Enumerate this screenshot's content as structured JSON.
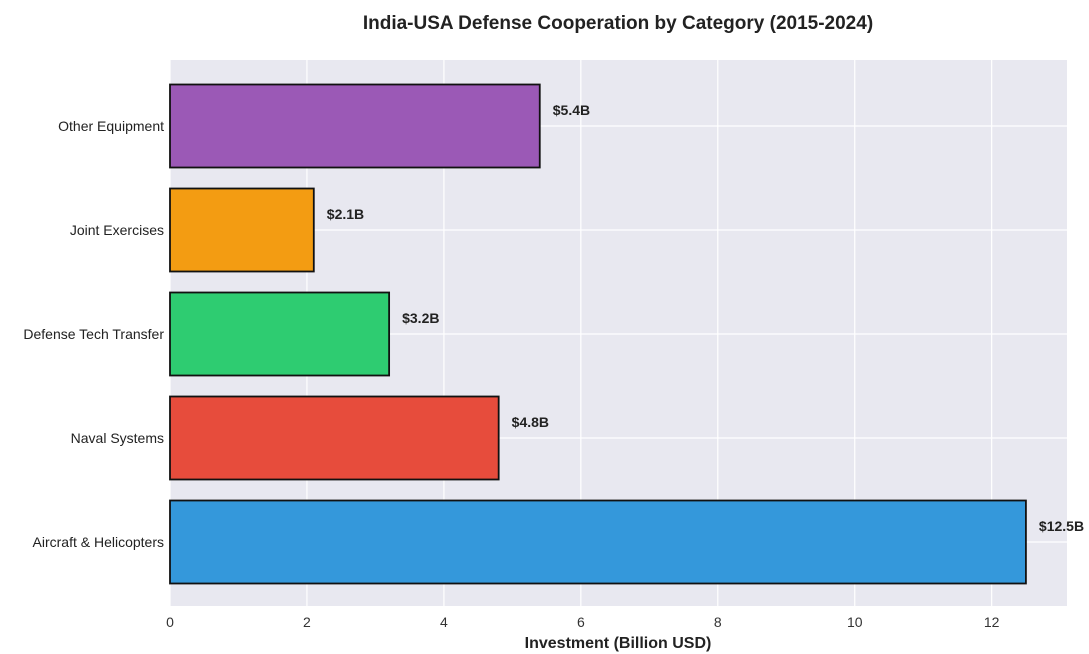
{
  "chart_data": {
    "type": "bar",
    "orientation": "horizontal",
    "title": "India-USA Defense Cooperation by Category (2015-2024)",
    "xlabel": "Investment (Billion USD)",
    "ylabel": "",
    "categories": [
      "Aircraft & Helicopters",
      "Naval Systems",
      "Defense Tech Transfer",
      "Joint Exercises",
      "Other Equipment"
    ],
    "values": [
      12.5,
      4.8,
      3.2,
      2.1,
      5.4
    ],
    "data_labels": [
      "$12.5B",
      "$4.8B",
      "$3.2B",
      "$2.1B",
      "$5.4B"
    ],
    "colors": [
      "#3498db",
      "#e74c3c",
      "#2ecc71",
      "#f39c12",
      "#9b59b6"
    ],
    "xlim": [
      0,
      13.1
    ],
    "xticks": [
      0,
      2,
      4,
      6,
      8,
      10,
      12
    ],
    "grid": true,
    "plot_background": "#e8e8f0",
    "legend": "none"
  }
}
